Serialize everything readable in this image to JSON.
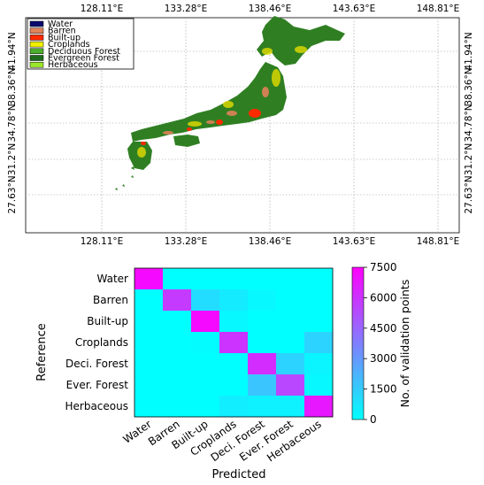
{
  "map": {
    "lon_ticks_top": [
      "128.11°E",
      "133.28°E",
      "138.46°E",
      "143.63°E",
      "148.81°E"
    ],
    "lon_ticks_bottom": [
      "128.11°E",
      "133.28°E",
      "138.46°E",
      "143.63°E",
      "148.81°E"
    ],
    "lat_ticks": [
      "41.94°N",
      "38.36°N",
      "34.78°N",
      "31.2°N",
      "27.63°N"
    ],
    "legend": [
      {
        "label": "Water",
        "color": "#0a0a6e"
      },
      {
        "label": "Barren",
        "color": "#e0825a"
      },
      {
        "label": "Built-up",
        "color": "#ff2a00"
      },
      {
        "label": "Croplands",
        "color": "#f0f000"
      },
      {
        "label": "Deciduous Forest",
        "color": "#4cae2c"
      },
      {
        "label": "Evergreen Forest",
        "color": "#1e6b1e"
      },
      {
        "label": "Herbaceous",
        "color": "#9ae62a"
      }
    ]
  },
  "chart_data": {
    "type": "heatmap",
    "rows": [
      "Water",
      "Barren",
      "Built-up",
      "Croplands",
      "Deci. Forest",
      "Ever. Forest",
      "Herbaceous"
    ],
    "columns": [
      "Water",
      "Barren",
      "Built-up",
      "Croplands",
      "Deci. Forest",
      "Ever. Forest",
      "Herbaceous"
    ],
    "values": [
      [
        7200,
        0,
        0,
        0,
        0,
        0,
        0
      ],
      [
        0,
        5800,
        1000,
        600,
        200,
        0,
        0
      ],
      [
        0,
        0,
        7200,
        200,
        0,
        0,
        0
      ],
      [
        0,
        0,
        100,
        6000,
        0,
        0,
        1300
      ],
      [
        0,
        0,
        0,
        0,
        6200,
        1300,
        300
      ],
      [
        0,
        0,
        0,
        0,
        1700,
        5400,
        200
      ],
      [
        0,
        0,
        0,
        500,
        400,
        400,
        6800
      ]
    ],
    "xlabel": "Predicted",
    "ylabel": "Reference",
    "colorbar": {
      "label": "No. of validation points",
      "min": 0,
      "max": 7500,
      "ticks": [
        "7500",
        "6000",
        "4500",
        "3000",
        "1500",
        "0"
      ],
      "color_low": "#00ffff",
      "color_high": "#ff00ff"
    }
  }
}
